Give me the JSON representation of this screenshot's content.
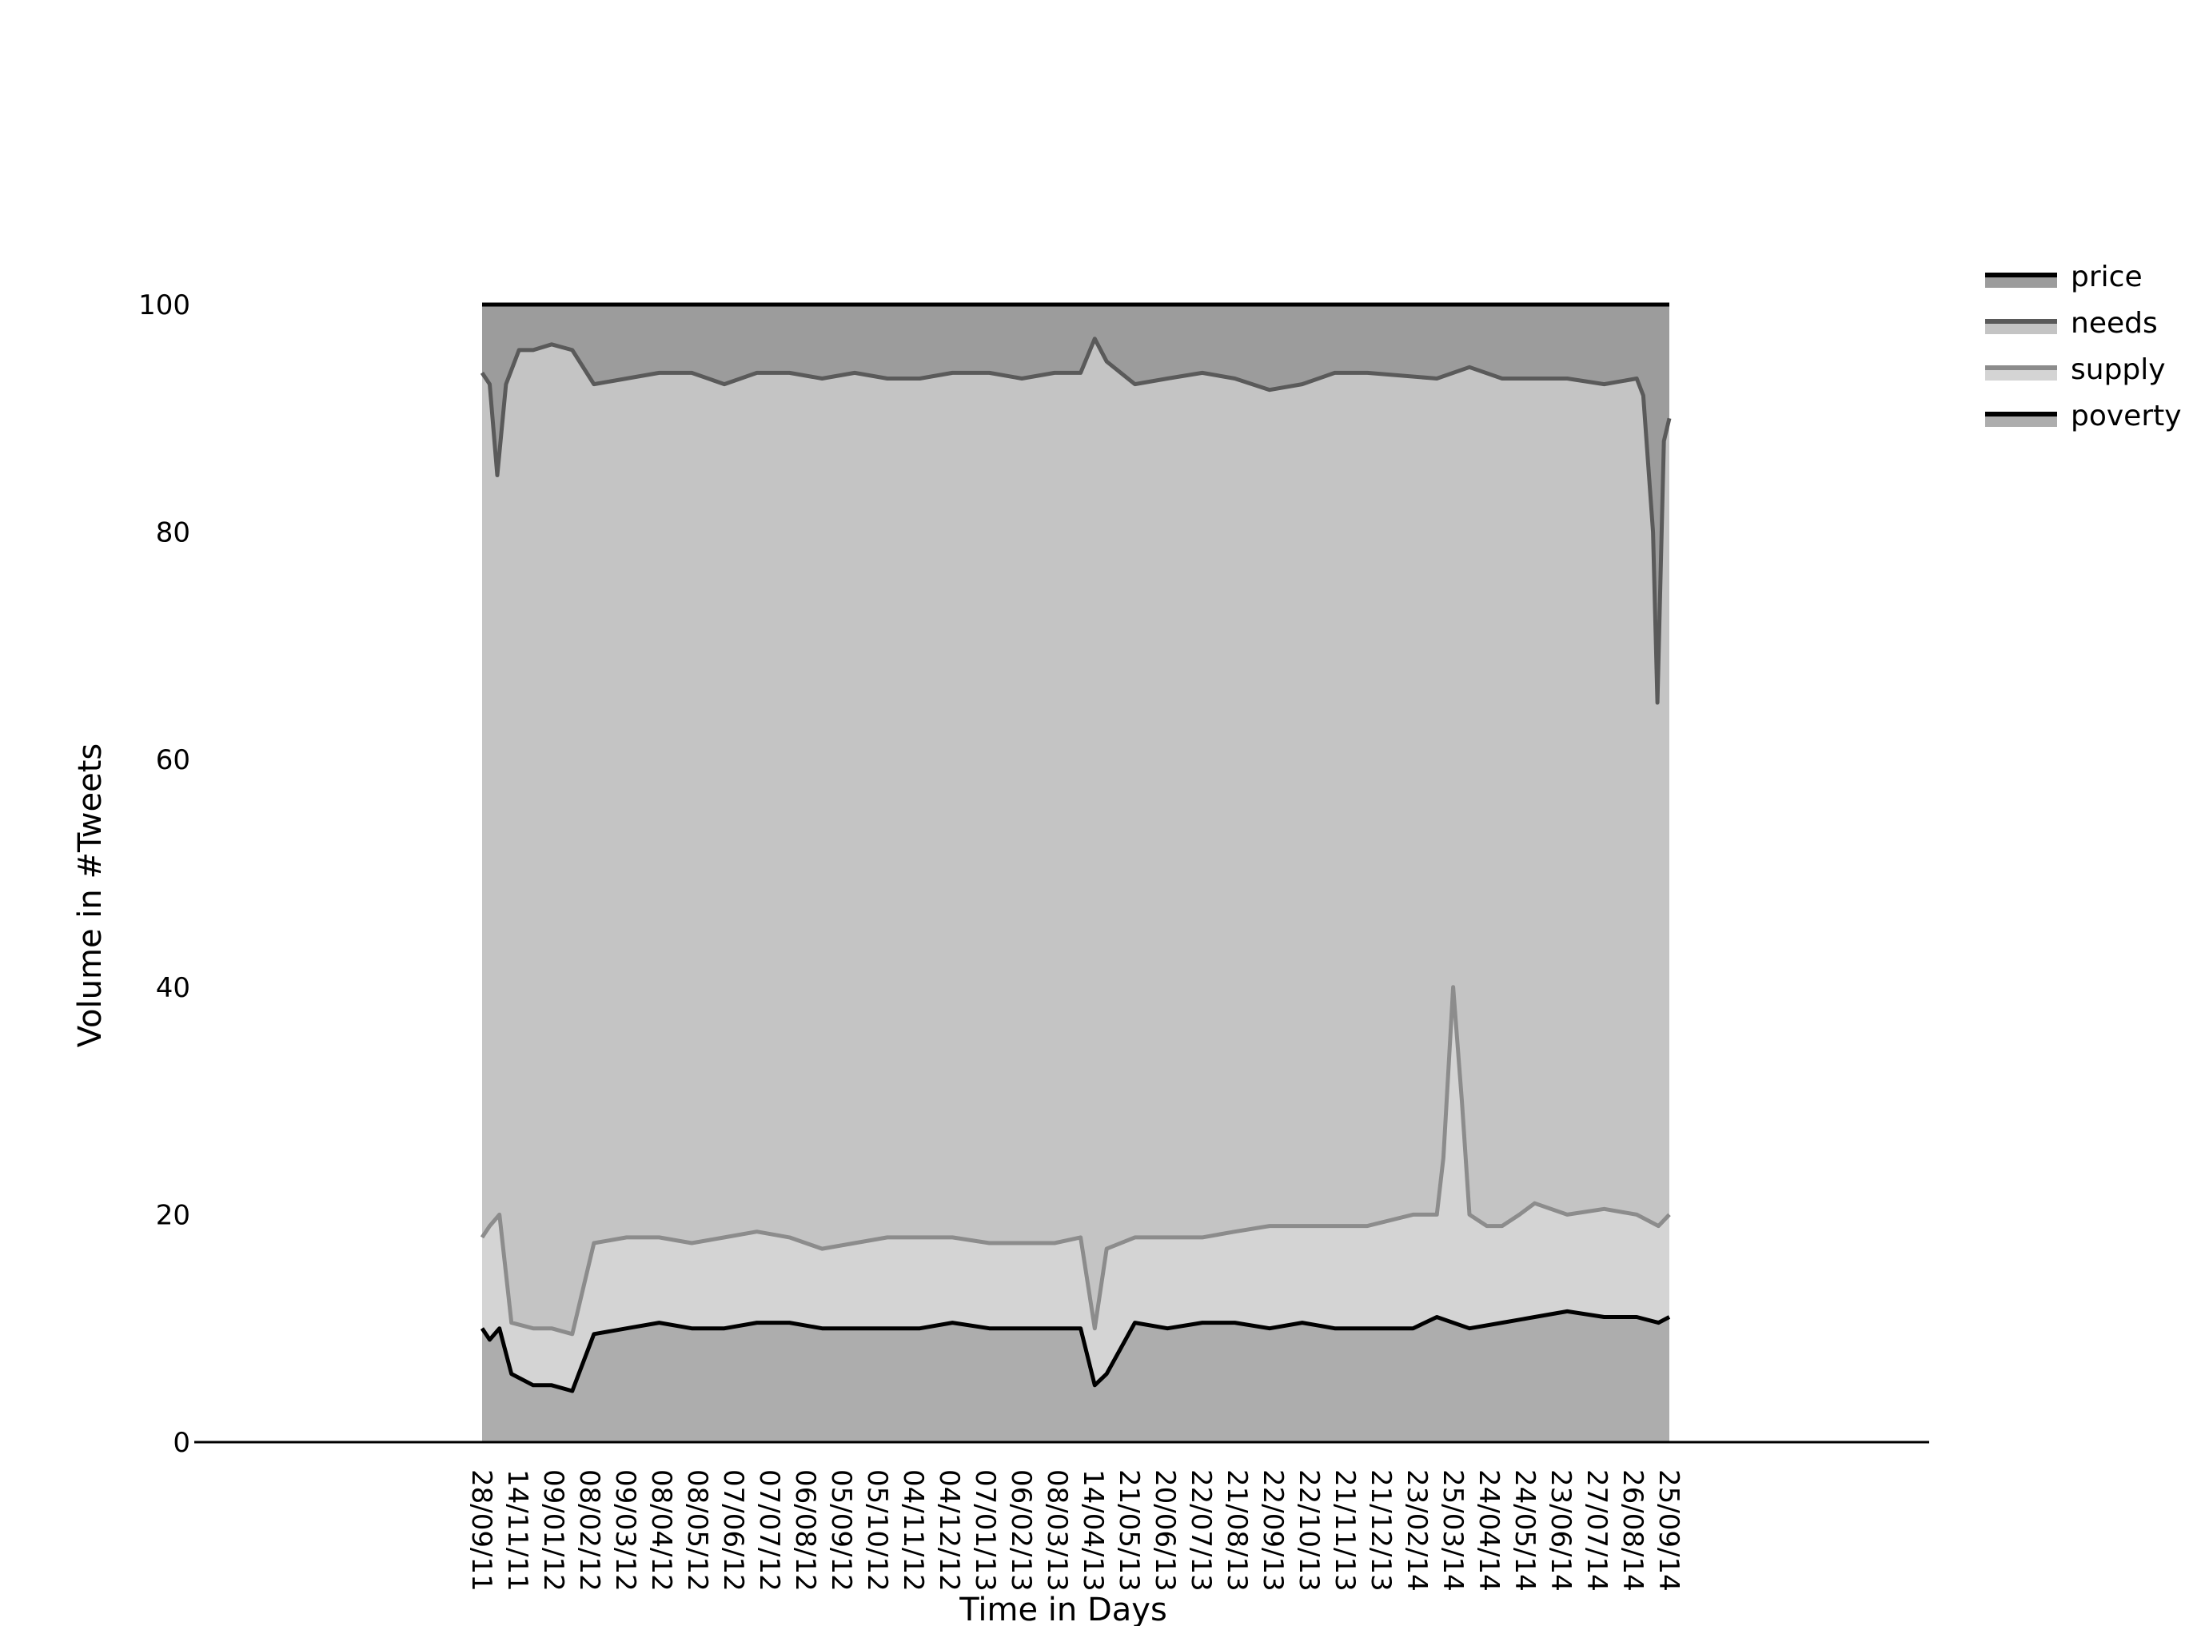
{
  "chart_data": {
    "type": "area",
    "stacked": true,
    "title": "",
    "xlabel": "Time in Days",
    "ylabel": "Volume in #Tweets",
    "ylim": [
      0,
      100
    ],
    "yticks": [
      0,
      20,
      40,
      60,
      80,
      100
    ],
    "x_range": [
      "28/09/11",
      "25/09/14"
    ],
    "x_tick_labels": [
      "28/09/11",
      "14/11/11",
      "09/01/12",
      "08/02/12",
      "09/03/12",
      "08/04/12",
      "08/05/12",
      "07/06/12",
      "07/07/12",
      "06/08/12",
      "05/09/12",
      "05/10/12",
      "04/11/12",
      "04/12/12",
      "07/01/13",
      "06/02/13",
      "08/03/13",
      "14/04/13",
      "21/05/13",
      "20/06/13",
      "22/07/13",
      "21/08/13",
      "22/09/13",
      "22/10/13",
      "21/11/13",
      "21/12/13",
      "23/02/14",
      "25/03/14",
      "24/04/14",
      "24/05/14",
      "23/06/14",
      "27/07/14",
      "26/08/14",
      "25/09/14"
    ],
    "grid": false,
    "legend_position": "top-right",
    "series": [
      {
        "name": "poverty",
        "line_color": "#000000",
        "fill_color": "#adadad",
        "note_values_are_cumulative_top_boundary": false,
        "x": [
          "28/09/11",
          "05/10/11",
          "14/10/11",
          "25/10/11",
          "14/11/11",
          "01/12/11",
          "20/12/11",
          "09/01/12",
          "08/02/12",
          "09/03/12",
          "08/04/12",
          "08/05/12",
          "07/06/12",
          "07/07/12",
          "06/08/12",
          "05/09/12",
          "05/10/12",
          "04/11/12",
          "04/12/12",
          "07/01/13",
          "06/02/13",
          "08/03/13",
          "01/04/13",
          "14/04/13",
          "25/04/13",
          "21/05/13",
          "20/06/13",
          "22/07/13",
          "21/08/13",
          "22/09/13",
          "22/10/13",
          "21/11/13",
          "21/12/13",
          "01/02/14",
          "23/02/14",
          "25/03/14",
          "24/04/14",
          "24/05/14",
          "23/06/14",
          "27/07/14",
          "26/08/14",
          "15/09/14",
          "25/09/14"
        ],
        "values": [
          10,
          9,
          10,
          6,
          5,
          5,
          4.5,
          9.5,
          10,
          10.5,
          10,
          10,
          10.5,
          10.5,
          10,
          10,
          10,
          10,
          10.5,
          10,
          10,
          10,
          10,
          5,
          6,
          10.5,
          10,
          10.5,
          10.5,
          10,
          10.5,
          10,
          10,
          10,
          11,
          10,
          10.5,
          11,
          11.5,
          11,
          11,
          10.5,
          11
        ]
      },
      {
        "name": "supply",
        "line_color": "#8c8c8c",
        "fill_color": "#d4d4d4",
        "x": [
          "28/09/11",
          "05/10/11",
          "14/10/11",
          "25/10/11",
          "14/11/11",
          "01/12/11",
          "20/12/11",
          "09/01/12",
          "08/02/12",
          "09/03/12",
          "08/04/12",
          "08/05/12",
          "07/06/12",
          "07/07/12",
          "06/08/12",
          "05/09/12",
          "05/10/12",
          "04/11/12",
          "04/12/12",
          "07/01/13",
          "06/02/13",
          "08/03/13",
          "01/04/13",
          "14/04/13",
          "25/04/13",
          "21/05/13",
          "20/06/13",
          "22/07/13",
          "21/08/13",
          "22/09/13",
          "22/10/13",
          "21/11/13",
          "21/12/13",
          "01/02/14",
          "23/02/14",
          "01/03/14",
          "10/03/14",
          "18/03/14",
          "25/03/14",
          "10/04/14",
          "24/04/14",
          "10/05/14",
          "24/05/14",
          "23/06/14",
          "27/07/14",
          "26/08/14",
          "15/09/14",
          "25/09/14"
        ],
        "values": [
          18,
          19,
          20,
          10.5,
          10,
          10,
          9.5,
          17.5,
          18,
          18,
          17.5,
          18,
          18.5,
          18,
          17,
          17.5,
          18,
          18,
          18,
          17.5,
          17.5,
          17.5,
          18,
          10,
          17,
          18,
          18,
          18,
          18.5,
          19,
          19,
          19,
          19,
          20,
          20,
          25,
          40,
          30,
          20,
          19,
          19,
          20,
          21,
          20,
          20.5,
          20,
          19,
          20
        ]
      },
      {
        "name": "needs",
        "line_color": "#5a5a5a",
        "fill_color": "#c4c4c4",
        "x": [
          "28/09/11",
          "05/10/11",
          "12/10/11",
          "20/10/11",
          "01/11/11",
          "14/11/11",
          "01/12/11",
          "20/12/11",
          "09/01/12",
          "08/02/12",
          "09/03/12",
          "08/04/12",
          "08/05/12",
          "07/06/12",
          "07/07/12",
          "06/08/12",
          "05/09/12",
          "05/10/12",
          "04/11/12",
          "04/12/12",
          "07/01/13",
          "06/02/13",
          "08/03/13",
          "01/04/13",
          "14/04/13",
          "25/04/13",
          "21/05/13",
          "20/06/13",
          "22/07/13",
          "21/08/13",
          "22/09/13",
          "22/10/13",
          "21/11/13",
          "21/12/13",
          "23/02/14",
          "25/03/14",
          "24/04/14",
          "24/05/14",
          "23/06/14",
          "27/07/14",
          "26/08/14",
          "01/09/14",
          "10/09/14",
          "14/09/14",
          "20/09/14",
          "25/09/14"
        ],
        "values": [
          94,
          93,
          85,
          93,
          96,
          96,
          96.5,
          96,
          93,
          93.5,
          94,
          94,
          93,
          94,
          94,
          93.5,
          94,
          93.5,
          93.5,
          94,
          94,
          93.5,
          94,
          94,
          97,
          95,
          93,
          93.5,
          94,
          93.5,
          92.5,
          93,
          94,
          94,
          93.5,
          94.5,
          93.5,
          93.5,
          93.5,
          93,
          93.5,
          92,
          80,
          65,
          88,
          90
        ]
      },
      {
        "name": "price",
        "line_color": "#000000",
        "fill_color": "#9c9c9c",
        "x": [
          "28/09/11",
          "25/09/14"
        ],
        "values": [
          100,
          100
        ]
      }
    ],
    "legend": [
      {
        "name": "price",
        "line_color": "#000000",
        "fill_color": "#9c9c9c"
      },
      {
        "name": "needs",
        "line_color": "#5a5a5a",
        "fill_color": "#c4c4c4"
      },
      {
        "name": "supply",
        "line_color": "#8c8c8c",
        "fill_color": "#d4d4d4"
      },
      {
        "name": "poverty",
        "line_color": "#000000",
        "fill_color": "#adadad"
      }
    ]
  }
}
